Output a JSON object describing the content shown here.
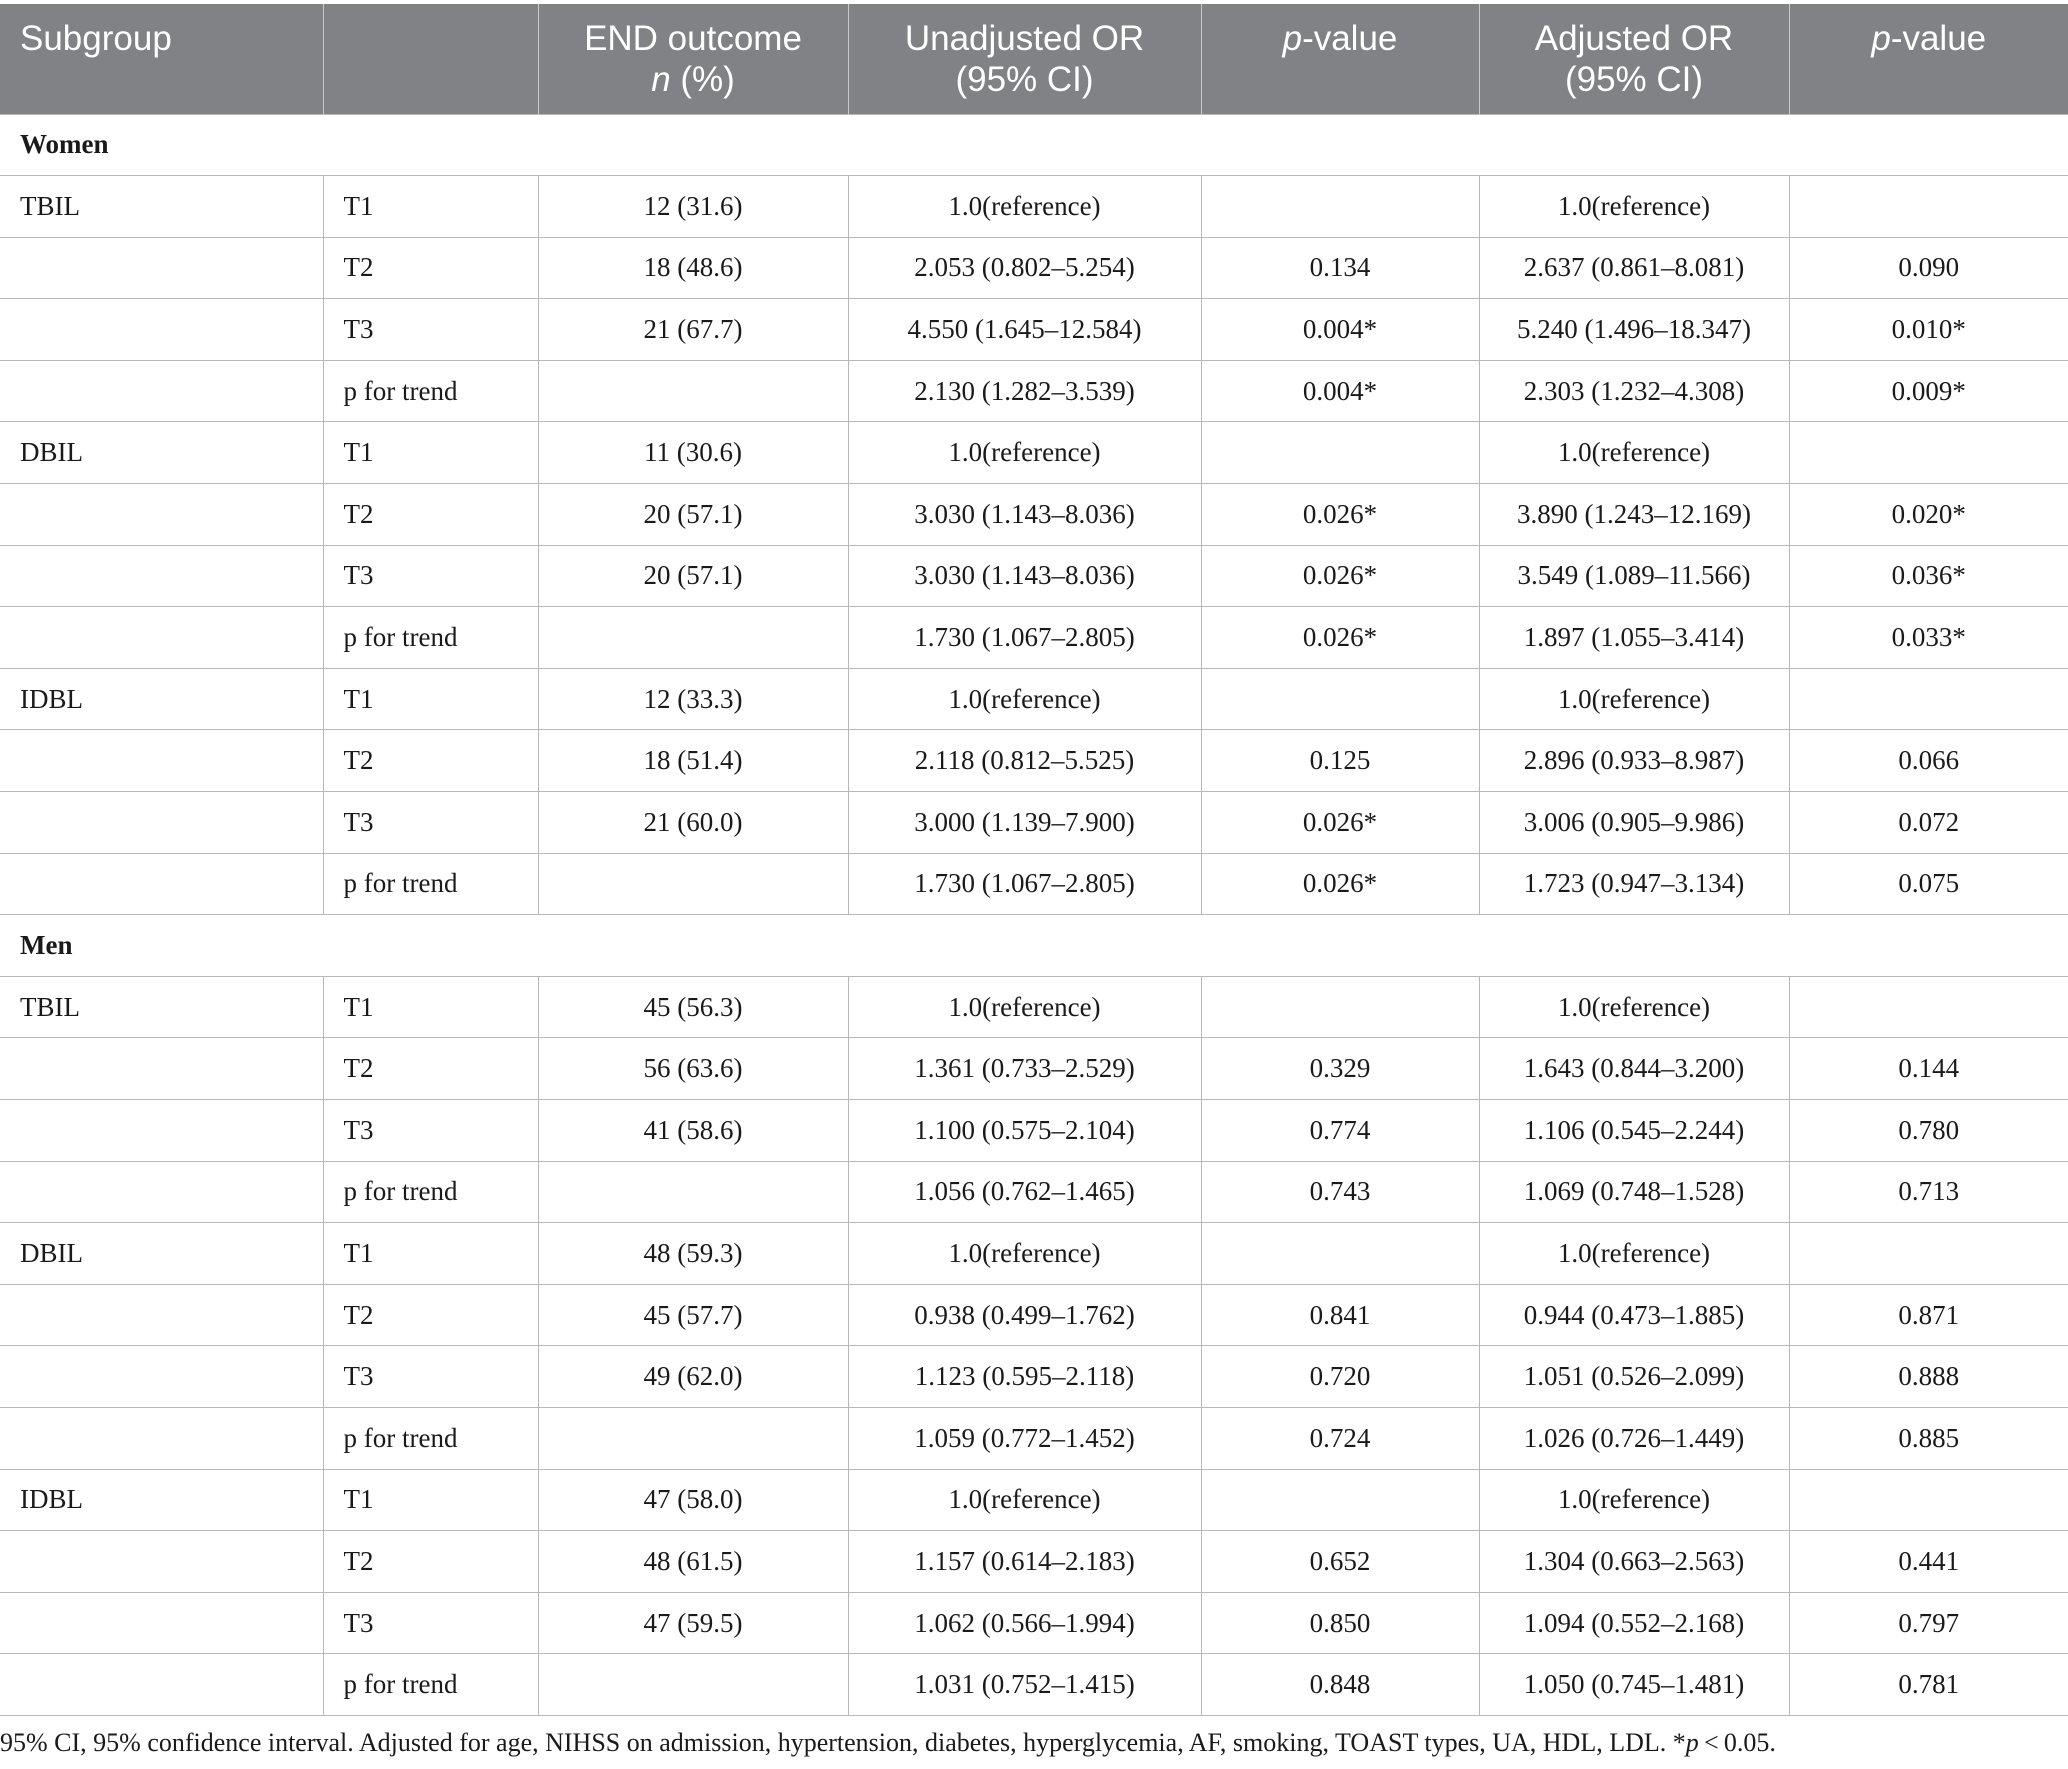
{
  "table": {
    "headers": {
      "subgroup": "Subgroup",
      "blank": "",
      "end_outcome_line1": "END outcome",
      "end_outcome_n": "n",
      "end_outcome_pct": " (%)",
      "unadj_line1": "Unadjusted OR",
      "unadj_line2": "(95% CI)",
      "p1_italic": "p",
      "p1_rest": "-value",
      "adj_line1": "Adjusted OR",
      "adj_line2": "(95% CI)",
      "p2_italic": "p",
      "p2_rest": "-value"
    },
    "rows": [
      {
        "type": "section",
        "label": "Women"
      },
      {
        "type": "data",
        "marker": "TBIL",
        "level": "T1",
        "n": "12 (31.6)",
        "unadj": "1.0(reference)",
        "p1": "",
        "adj": "1.0(reference)",
        "p2": ""
      },
      {
        "type": "data",
        "marker": "",
        "level": "T2",
        "n": "18 (48.6)",
        "unadj": "2.053 (0.802–5.254)",
        "p1": "0.134",
        "adj": "2.637 (0.861–8.081)",
        "p2": "0.090"
      },
      {
        "type": "data",
        "marker": "",
        "level": "T3",
        "n": "21 (67.7)",
        "unadj": "4.550 (1.645–12.584)",
        "p1": "0.004*",
        "adj": "5.240 (1.496–18.347)",
        "p2": "0.010*"
      },
      {
        "type": "data",
        "marker": "",
        "level": "p for trend",
        "n": "",
        "unadj": "2.130 (1.282–3.539)",
        "p1": "0.004*",
        "adj": "2.303 (1.232–4.308)",
        "p2": "0.009*"
      },
      {
        "type": "data",
        "marker": "DBIL",
        "level": "T1",
        "n": "11 (30.6)",
        "unadj": "1.0(reference)",
        "p1": "",
        "adj": "1.0(reference)",
        "p2": ""
      },
      {
        "type": "data",
        "marker": "",
        "level": "T2",
        "n": "20 (57.1)",
        "unadj": "3.030 (1.143–8.036)",
        "p1": "0.026*",
        "adj": "3.890 (1.243–12.169)",
        "p2": "0.020*"
      },
      {
        "type": "data",
        "marker": "",
        "level": "T3",
        "n": "20 (57.1)",
        "unadj": "3.030 (1.143–8.036)",
        "p1": "0.026*",
        "adj": "3.549 (1.089–11.566)",
        "p2": "0.036*"
      },
      {
        "type": "data",
        "marker": "",
        "level": "p for trend",
        "n": "",
        "unadj": "1.730 (1.067–2.805)",
        "p1": "0.026*",
        "adj": "1.897 (1.055–3.414)",
        "p2": "0.033*"
      },
      {
        "type": "data",
        "marker": "IDBL",
        "level": "T1",
        "n": "12 (33.3)",
        "unadj": "1.0(reference)",
        "p1": "",
        "adj": "1.0(reference)",
        "p2": ""
      },
      {
        "type": "data",
        "marker": "",
        "level": "T2",
        "n": "18 (51.4)",
        "unadj": "2.118 (0.812–5.525)",
        "p1": "0.125",
        "adj": "2.896 (0.933–8.987)",
        "p2": "0.066"
      },
      {
        "type": "data",
        "marker": "",
        "level": "T3",
        "n": "21 (60.0)",
        "unadj": "3.000 (1.139–7.900)",
        "p1": "0.026*",
        "adj": "3.006 (0.905–9.986)",
        "p2": "0.072"
      },
      {
        "type": "data",
        "marker": "",
        "level": "p for trend",
        "n": "",
        "unadj": "1.730 (1.067–2.805)",
        "p1": "0.026*",
        "adj": "1.723 (0.947–3.134)",
        "p2": "0.075"
      },
      {
        "type": "section",
        "label": "Men"
      },
      {
        "type": "data",
        "marker": "TBIL",
        "level": "T1",
        "n": "45 (56.3)",
        "unadj": "1.0(reference)",
        "p1": "",
        "adj": "1.0(reference)",
        "p2": ""
      },
      {
        "type": "data",
        "marker": "",
        "level": "T2",
        "n": "56 (63.6)",
        "unadj": "1.361 (0.733–2.529)",
        "p1": "0.329",
        "adj": "1.643 (0.844–3.200)",
        "p2": "0.144"
      },
      {
        "type": "data",
        "marker": "",
        "level": "T3",
        "n": "41 (58.6)",
        "unadj": "1.100 (0.575–2.104)",
        "p1": "0.774",
        "adj": "1.106 (0.545–2.244)",
        "p2": "0.780"
      },
      {
        "type": "data",
        "marker": "",
        "level": "p for trend",
        "n": "",
        "unadj": "1.056 (0.762–1.465)",
        "p1": "0.743",
        "adj": "1.069 (0.748–1.528)",
        "p2": "0.713"
      },
      {
        "type": "data",
        "marker": "DBIL",
        "level": "T1",
        "n": "48 (59.3)",
        "unadj": "1.0(reference)",
        "p1": "",
        "adj": "1.0(reference)",
        "p2": ""
      },
      {
        "type": "data",
        "marker": "",
        "level": "T2",
        "n": "45 (57.7)",
        "unadj": "0.938 (0.499–1.762)",
        "p1": "0.841",
        "adj": "0.944 (0.473–1.885)",
        "p2": "0.871"
      },
      {
        "type": "data",
        "marker": "",
        "level": "T3",
        "n": "49 (62.0)",
        "unadj": "1.123 (0.595–2.118)",
        "p1": "0.720",
        "adj": "1.051 (0.526–2.099)",
        "p2": "0.888"
      },
      {
        "type": "data",
        "marker": "",
        "level": "p for trend",
        "n": "",
        "unadj": "1.059 (0.772–1.452)",
        "p1": "0.724",
        "adj": "1.026 (0.726–1.449)",
        "p2": "0.885"
      },
      {
        "type": "data",
        "marker": "IDBL",
        "level": "T1",
        "n": "47 (58.0)",
        "unadj": "1.0(reference)",
        "p1": "",
        "adj": "1.0(reference)",
        "p2": ""
      },
      {
        "type": "data",
        "marker": "",
        "level": "T2",
        "n": "48 (61.5)",
        "unadj": "1.157 (0.614–2.183)",
        "p1": "0.652",
        "adj": "1.304 (0.663–2.563)",
        "p2": "0.441"
      },
      {
        "type": "data",
        "marker": "",
        "level": "T3",
        "n": "47 (59.5)",
        "unadj": "1.062 (0.566–1.994)",
        "p1": "0.850",
        "adj": "1.094 (0.552–2.168)",
        "p2": "0.797"
      },
      {
        "type": "data",
        "marker": "",
        "level": "p for trend",
        "n": "",
        "unadj": "1.031 (0.752–1.415)",
        "p1": "0.848",
        "adj": "1.050 (0.745–1.481)",
        "p2": "0.781"
      }
    ]
  },
  "footnote": {
    "text": "95% CI, 95% confidence interval. Adjusted for age, NIHSS on admission, hypertension, diabetes, hyperglycemia, AF, smoking, TOAST types, UA, HDL, LDL. *",
    "p_italic": "p",
    "tail": " < 0.05."
  },
  "colors": {
    "header_bg": "#808285",
    "header_text": "#ffffff",
    "rule": "#b8b8b8",
    "text": "#1a1a1a"
  }
}
